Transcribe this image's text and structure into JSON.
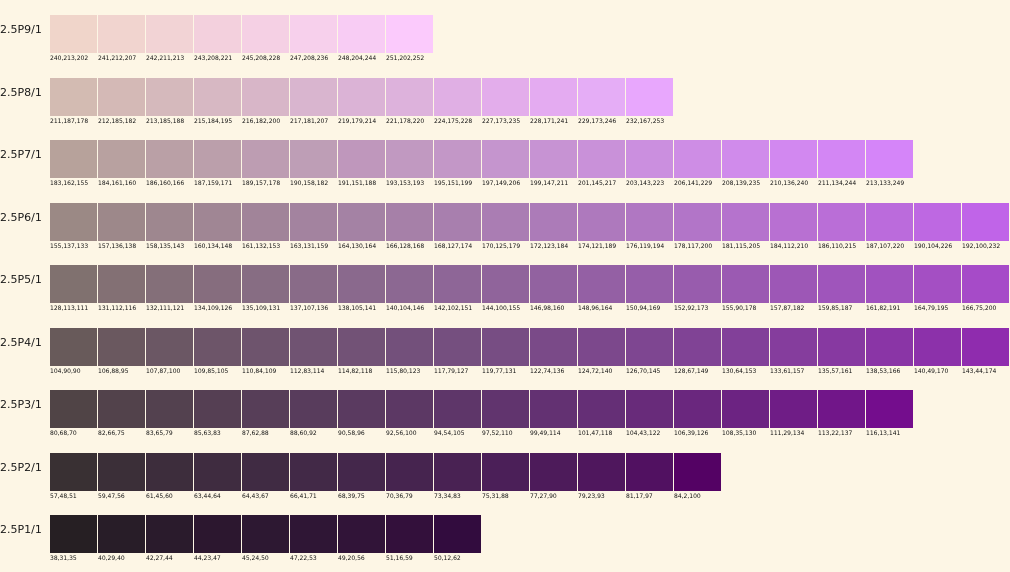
{
  "rows": [
    {
      "label": "2.5P9/1",
      "swatches": [
        {
          "rgb": "240,213,202",
          "color": "#f0d5ca"
        },
        {
          "rgb": "241,212,207",
          "color": "#f1d4cf"
        },
        {
          "rgb": "242,211,213",
          "color": "#f2d3d5"
        },
        {
          "rgb": "243,208,221",
          "color": "#f3d0dd"
        },
        {
          "rgb": "245,208,228",
          "color": "#f5d0e4"
        },
        {
          "rgb": "247,208,236",
          "color": "#f7d0ec"
        },
        {
          "rgb": "248,204,244",
          "color": "#f8ccf4"
        },
        {
          "rgb": "251,202,252",
          "color": "#fbcafc"
        }
      ]
    },
    {
      "label": "2.5P8/1",
      "swatches": [
        {
          "rgb": "211,187,178",
          "color": "#d3bbb2"
        },
        {
          "rgb": "212,185,182",
          "color": "#d4b9b6"
        },
        {
          "rgb": "213,185,188",
          "color": "#d5b9bc"
        },
        {
          "rgb": "215,184,195",
          "color": "#d7b8c3"
        },
        {
          "rgb": "216,182,200",
          "color": "#d8b6c8"
        },
        {
          "rgb": "217,181,207",
          "color": "#d9b5cf"
        },
        {
          "rgb": "219,179,214",
          "color": "#dbb3d6"
        },
        {
          "rgb": "221,178,220",
          "color": "#ddb2dc"
        },
        {
          "rgb": "224,175,228",
          "color": "#e0afe4"
        },
        {
          "rgb": "227,173,235",
          "color": "#e3adeb"
        },
        {
          "rgb": "228,171,241",
          "color": "#e4abf1"
        },
        {
          "rgb": "229,173,246",
          "color": "#e5adf6"
        },
        {
          "rgb": "232,167,253",
          "color": "#e8a7fd"
        }
      ]
    },
    {
      "label": "2.5P7/1",
      "swatches": [
        {
          "rgb": "183,162,155",
          "color": "#b7a29b"
        },
        {
          "rgb": "184,161,160",
          "color": "#b8a1a0"
        },
        {
          "rgb": "186,160,166",
          "color": "#baa0a6"
        },
        {
          "rgb": "187,159,171",
          "color": "#bb9fab"
        },
        {
          "rgb": "189,157,178",
          "color": "#bd9db2"
        },
        {
          "rgb": "190,158,182",
          "color": "#be9eb6"
        },
        {
          "rgb": "191,151,188",
          "color": "#bf97bc"
        },
        {
          "rgb": "193,153,193",
          "color": "#c199c1"
        },
        {
          "rgb": "195,151,199",
          "color": "#c397c7"
        },
        {
          "rgb": "197,149,206",
          "color": "#c595ce"
        },
        {
          "rgb": "199,147,211",
          "color": "#c793d3"
        },
        {
          "rgb": "201,145,217",
          "color": "#c991d9"
        },
        {
          "rgb": "203,143,223",
          "color": "#cb8fdf"
        },
        {
          "rgb": "206,141,229",
          "color": "#ce8de5"
        },
        {
          "rgb": "208,139,235",
          "color": "#d08beb"
        },
        {
          "rgb": "210,136,240",
          "color": "#d288f0"
        },
        {
          "rgb": "211,134,244",
          "color": "#d386f4"
        },
        {
          "rgb": "213,133,249",
          "color": "#d585f9"
        }
      ]
    },
    {
      "label": "2.5P6/1",
      "swatches": [
        {
          "rgb": "155,137,133",
          "color": "#9b8985"
        },
        {
          "rgb": "157,136,138",
          "color": "#9d888a"
        },
        {
          "rgb": "158,135,143",
          "color": "#9e878f"
        },
        {
          "rgb": "160,134,148",
          "color": "#a08694"
        },
        {
          "rgb": "161,132,153",
          "color": "#a18499"
        },
        {
          "rgb": "163,131,159",
          "color": "#a3839f"
        },
        {
          "rgb": "164,130,164",
          "color": "#a482a4"
        },
        {
          "rgb": "166,128,168",
          "color": "#a680a8"
        },
        {
          "rgb": "168,127,174",
          "color": "#a87fae"
        },
        {
          "rgb": "170,125,179",
          "color": "#aa7db3"
        },
        {
          "rgb": "172,123,184",
          "color": "#ac7bb8"
        },
        {
          "rgb": "174,121,189",
          "color": "#ae79bd"
        },
        {
          "rgb": "176,119,194",
          "color": "#b077c2"
        },
        {
          "rgb": "178,117,200",
          "color": "#b275c8"
        },
        {
          "rgb": "181,115,205",
          "color": "#b573cd"
        },
        {
          "rgb": "184,112,210",
          "color": "#b870d2"
        },
        {
          "rgb": "186,110,215",
          "color": "#ba6ed7"
        },
        {
          "rgb": "187,107,220",
          "color": "#bb6bdc"
        },
        {
          "rgb": "190,104,226",
          "color": "#be68e2"
        },
        {
          "rgb": "192,100,232",
          "color": "#c064e8"
        }
      ]
    },
    {
      "label": "2.5P5/1",
      "swatches": [
        {
          "rgb": "128,113,111",
          "color": "#80716f"
        },
        {
          "rgb": "131,112,116",
          "color": "#837074"
        },
        {
          "rgb": "132,111,121",
          "color": "#846f79"
        },
        {
          "rgb": "134,109,126",
          "color": "#866d7e"
        },
        {
          "rgb": "135,109,131",
          "color": "#876d83"
        },
        {
          "rgb": "137,107,136",
          "color": "#896b88"
        },
        {
          "rgb": "138,105,141",
          "color": "#8a698d"
        },
        {
          "rgb": "140,104,146",
          "color": "#8c6892"
        },
        {
          "rgb": "142,102,151",
          "color": "#8e6697"
        },
        {
          "rgb": "144,100,155",
          "color": "#90649b"
        },
        {
          "rgb": "146,98,160",
          "color": "#9262a0"
        },
        {
          "rgb": "148,96,164",
          "color": "#9460a4"
        },
        {
          "rgb": "150,94,169",
          "color": "#965ea9"
        },
        {
          "rgb": "152,92,173",
          "color": "#985cad"
        },
        {
          "rgb": "155,90,178",
          "color": "#9b5ab2"
        },
        {
          "rgb": "157,87,182",
          "color": "#9d57b6"
        },
        {
          "rgb": "159,85,187",
          "color": "#9f55bb"
        },
        {
          "rgb": "161,82,191",
          "color": "#a152bf"
        },
        {
          "rgb": "164,79,195",
          "color": "#a44fc3"
        },
        {
          "rgb": "166,75,200",
          "color": "#a64bc8"
        }
      ]
    },
    {
      "label": "2.5P4/1",
      "swatches": [
        {
          "rgb": "104,90,90",
          "color": "#685a5a"
        },
        {
          "rgb": "106,88,95",
          "color": "#6a585f"
        },
        {
          "rgb": "107,87,100",
          "color": "#6b5764"
        },
        {
          "rgb": "109,85,105",
          "color": "#6d5569"
        },
        {
          "rgb": "110,84,109",
          "color": "#6e546d"
        },
        {
          "rgb": "112,83,114",
          "color": "#705372"
        },
        {
          "rgb": "114,82,118",
          "color": "#725276"
        },
        {
          "rgb": "115,80,123",
          "color": "#73507b"
        },
        {
          "rgb": "117,79,127",
          "color": "#754f7f"
        },
        {
          "rgb": "119,77,131",
          "color": "#774d83"
        },
        {
          "rgb": "122,74,136",
          "color": "#7a4a88"
        },
        {
          "rgb": "124,72,140",
          "color": "#7c488c"
        },
        {
          "rgb": "126,70,145",
          "color": "#7e4691"
        },
        {
          "rgb": "128,67,149",
          "color": "#804395"
        },
        {
          "rgb": "130,64,153",
          "color": "#824099"
        },
        {
          "rgb": "133,61,157",
          "color": "#853d9d"
        },
        {
          "rgb": "135,57,161",
          "color": "#8739a1"
        },
        {
          "rgb": "138,53,166",
          "color": "#8a35a6"
        },
        {
          "rgb": "140,49,170",
          "color": "#8c31aa"
        },
        {
          "rgb": "143,44,174",
          "color": "#8f2cae"
        }
      ]
    },
    {
      "label": "2.5P3/1",
      "swatches": [
        {
          "rgb": "80,68,70",
          "color": "#504446"
        },
        {
          "rgb": "82,66,75",
          "color": "#52424b"
        },
        {
          "rgb": "83,65,79",
          "color": "#53414f"
        },
        {
          "rgb": "85,63,83",
          "color": "#553f53"
        },
        {
          "rgb": "87,62,88",
          "color": "#573e58"
        },
        {
          "rgb": "88,60,92",
          "color": "#583c5c"
        },
        {
          "rgb": "90,58,96",
          "color": "#5a3a60"
        },
        {
          "rgb": "92,56,100",
          "color": "#5c3864"
        },
        {
          "rgb": "94,54,105",
          "color": "#5e3669"
        },
        {
          "rgb": "97,52,110",
          "color": "#61346e"
        },
        {
          "rgb": "99,49,114",
          "color": "#633172"
        },
        {
          "rgb": "101,47,118",
          "color": "#652f76"
        },
        {
          "rgb": "104,43,122",
          "color": "#682b7a"
        },
        {
          "rgb": "106,39,126",
          "color": "#6a277e"
        },
        {
          "rgb": "108,35,130",
          "color": "#6c2382"
        },
        {
          "rgb": "111,29,134",
          "color": "#6f1d86"
        },
        {
          "rgb": "113,22,137",
          "color": "#711689"
        },
        {
          "rgb": "116,13,141",
          "color": "#740d8d"
        }
      ]
    },
    {
      "label": "2.5P2/1",
      "swatches": [
        {
          "rgb": "57,48,51",
          "color": "#393033"
        },
        {
          "rgb": "59,47,56",
          "color": "#3b2f38"
        },
        {
          "rgb": "61,45,60",
          "color": "#3d2d3c"
        },
        {
          "rgb": "63,44,64",
          "color": "#3f2c40"
        },
        {
          "rgb": "64,43,67",
          "color": "#402b43"
        },
        {
          "rgb": "66,41,71",
          "color": "#422947"
        },
        {
          "rgb": "68,39,75",
          "color": "#44274b"
        },
        {
          "rgb": "70,36,79",
          "color": "#46244f"
        },
        {
          "rgb": "73,34,83",
          "color": "#492253"
        },
        {
          "rgb": "75,31,88",
          "color": "#4b1f58"
        },
        {
          "rgb": "77,27,90",
          "color": "#4d1b5a"
        },
        {
          "rgb": "79,23,93",
          "color": "#4f175d"
        },
        {
          "rgb": "81,17,97",
          "color": "#511161"
        },
        {
          "rgb": "84,2,100",
          "color": "#540264"
        }
      ]
    },
    {
      "label": "2.5P1/1",
      "swatches": [
        {
          "rgb": "38,31,35",
          "color": "#261f23"
        },
        {
          "rgb": "40,29,40",
          "color": "#281d28"
        },
        {
          "rgb": "42,27,44",
          "color": "#2a1b2c"
        },
        {
          "rgb": "44,23,47",
          "color": "#2c172f"
        },
        {
          "rgb": "45,24,50",
          "color": "#2d1832"
        },
        {
          "rgb": "47,22,53",
          "color": "#2f1635"
        },
        {
          "rgb": "49,20,56",
          "color": "#311438"
        },
        {
          "rgb": "51,16,59",
          "color": "#33103b"
        },
        {
          "rgb": "50,12,62",
          "color": "#320c3e"
        }
      ]
    }
  ]
}
